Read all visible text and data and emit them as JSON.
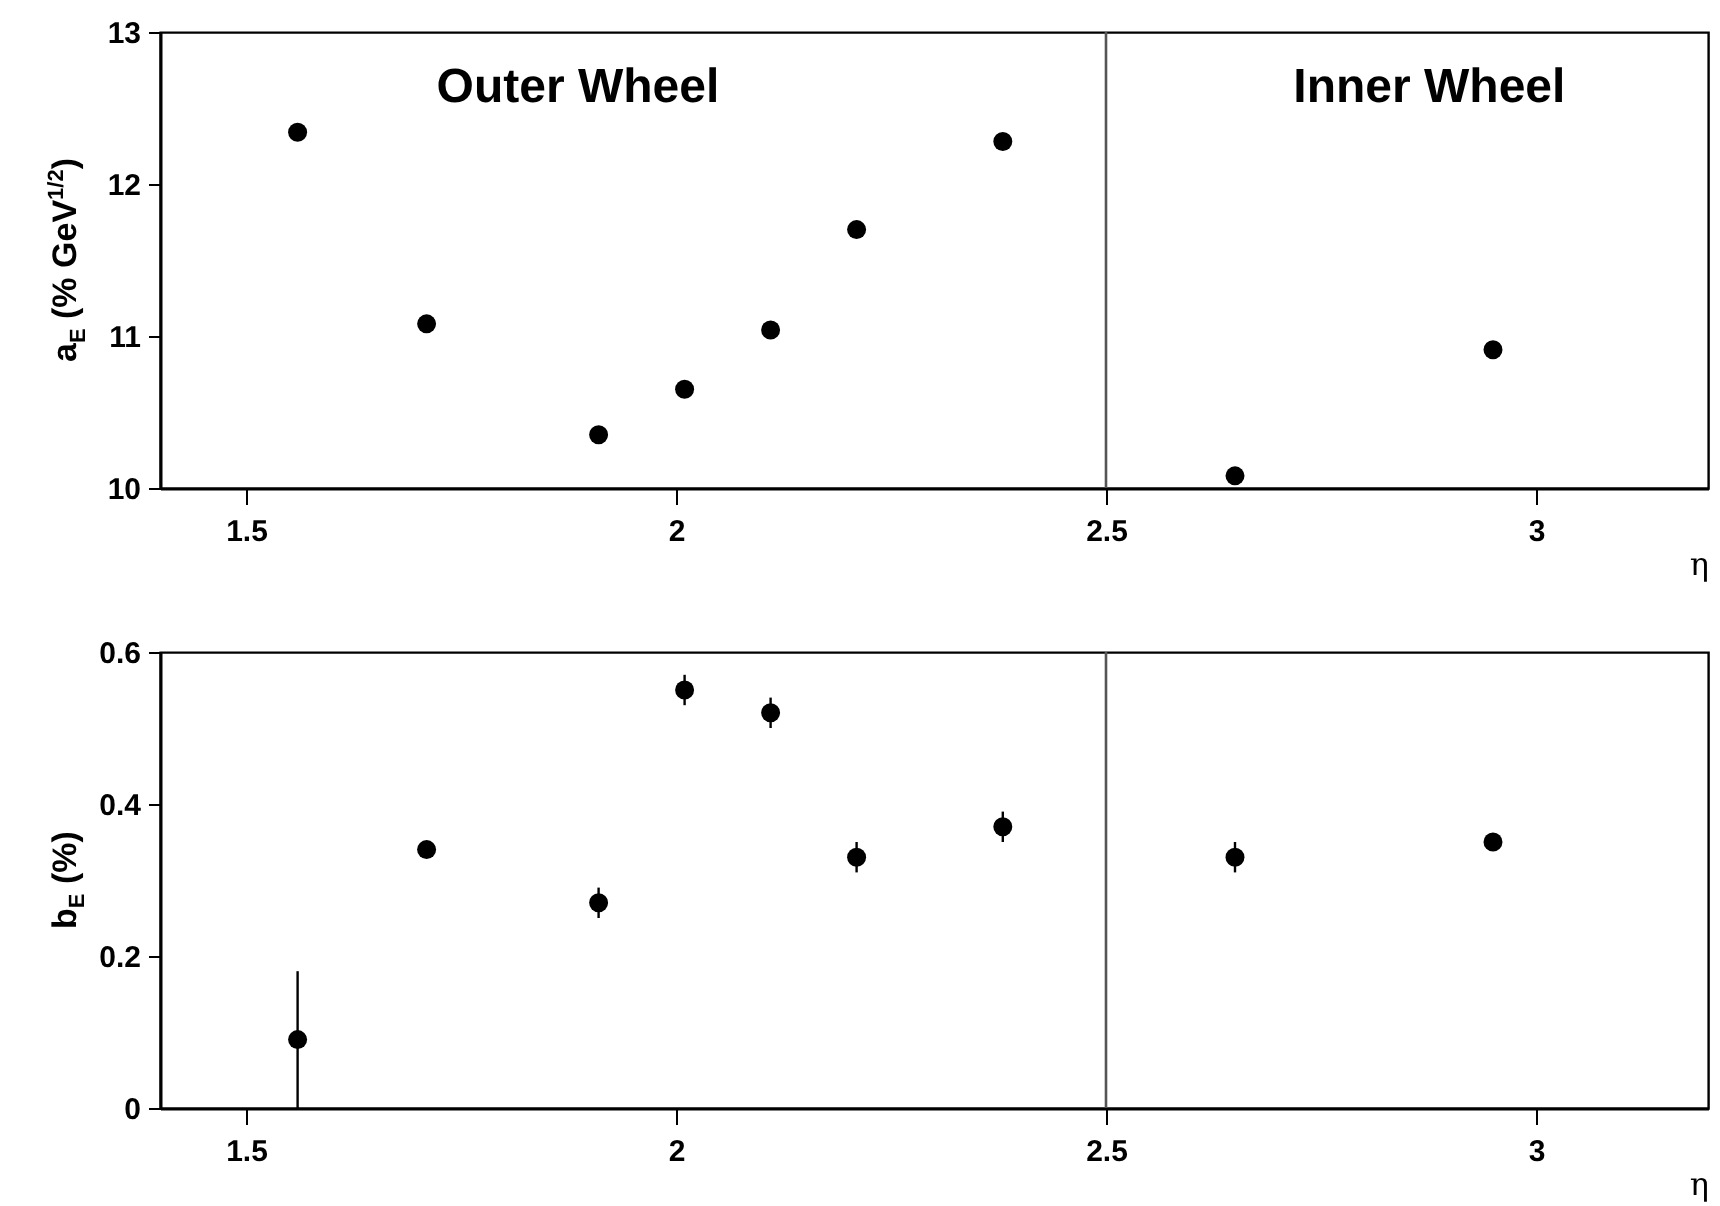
{
  "chart_data": [
    {
      "type": "scatter",
      "ylabel": "a$_{E}$ (% GeV$^{1/2}$)",
      "xlabel": "η",
      "annotations": [
        "Outer  Wheel",
        "Inner Wheel"
      ],
      "x": [
        1.56,
        1.71,
        1.91,
        2.01,
        2.11,
        2.21,
        2.38,
        2.65,
        2.95
      ],
      "series": [
        {
          "color": "#000000",
          "values": [
            12.34,
            11.08,
            10.35,
            10.65,
            11.04,
            11.7,
            12.28,
            10.08,
            10.91
          ]
        }
      ],
      "xlim": [
        1.4,
        3.2
      ],
      "xticks": [
        1.5,
        2,
        2.5,
        3
      ],
      "ylim": [
        10,
        13
      ],
      "yticks": [
        10,
        11,
        12,
        13
      ],
      "ref_lines": [
        {
          "axis": "x",
          "value": 2.5,
          "color": "#555555"
        }
      ],
      "marker": "circle"
    },
    {
      "type": "scatter",
      "ylabel": "b$_{E}$ (%)",
      "xlabel": "η",
      "x": [
        1.56,
        1.71,
        1.91,
        2.01,
        2.11,
        2.21,
        2.38,
        2.65,
        2.95
      ],
      "series": [
        {
          "color": "#000000",
          "values": [
            0.09,
            0.34,
            0.27,
            0.55,
            0.52,
            0.33,
            0.37,
            0.33,
            0.35
          ],
          "errors": [
            0.09,
            null,
            0.02,
            0.02,
            0.02,
            0.02,
            0.02,
            0.02,
            null
          ]
        }
      ],
      "xlim": [
        1.4,
        3.2
      ],
      "xticks": [
        1.5,
        2,
        2.5,
        3
      ],
      "ylim": [
        0,
        0.6
      ],
      "yticks": [
        0,
        0.2,
        0.4,
        0.6
      ],
      "ref_lines": [
        {
          "axis": "x",
          "value": 2.5,
          "color": "#555555"
        }
      ],
      "marker": "circle"
    }
  ]
}
